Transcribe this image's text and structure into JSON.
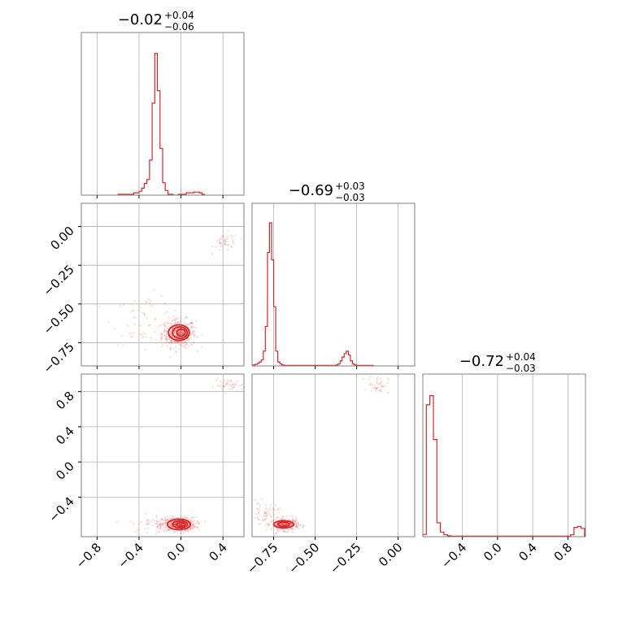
{
  "figure": {
    "type": "corner-plot"
  },
  "colors": {
    "accent": "#d62728",
    "grid": "#b0b0b0",
    "frame": "#808080"
  },
  "chart_data": [
    {
      "panel": "hist-0",
      "type": "bar",
      "title": {
        "value": "−0.02",
        "plus": "+0.04",
        "minus": "−0.06"
      },
      "xlim": [
        -0.95,
        0.6
      ],
      "xticks": [
        -0.8,
        -0.4,
        0.0,
        0.4
      ],
      "bins": {
        "start": -0.6,
        "width": 0.025,
        "counts": [
          1,
          1,
          1,
          1,
          1,
          1,
          3,
          3,
          5,
          9,
          15,
          20,
          45,
          118,
          182,
          134,
          60,
          16,
          6,
          1,
          1,
          0,
          0,
          1,
          1,
          1,
          3,
          3,
          3,
          4,
          4,
          3,
          1
        ]
      },
      "ymax": 190
    },
    {
      "panel": "scatter-1-0",
      "type": "scatter",
      "xlim": [
        -0.95,
        0.6
      ],
      "ylim": [
        -0.9,
        0.15
      ],
      "xticks": [
        -0.8,
        -0.4,
        0.0,
        0.4
      ],
      "yticks": [
        0.0,
        -0.25,
        -0.5,
        -0.75
      ],
      "ytick_labels": [
        "0.00",
        "−0.25",
        "−0.50",
        "−0.75"
      ],
      "clusters": [
        {
          "cx": -0.02,
          "cy": -0.69,
          "sx": 0.08,
          "sy": 0.045,
          "n": 420
        },
        {
          "cx": 0.43,
          "cy": -0.1,
          "sx": 0.06,
          "sy": 0.03,
          "n": 45
        },
        {
          "cx": -0.35,
          "cy": -0.6,
          "sx": 0.15,
          "sy": 0.08,
          "n": 60
        }
      ],
      "contours": [
        {
          "cx": -0.02,
          "cy": -0.685,
          "rx": 0.1,
          "ry": 0.05
        },
        {
          "cx": -0.01,
          "cy": -0.685,
          "rx": 0.07,
          "ry": 0.037
        },
        {
          "cx": 0.0,
          "cy": -0.685,
          "rx": 0.04,
          "ry": 0.022
        }
      ]
    },
    {
      "panel": "hist-1",
      "type": "bar",
      "title": {
        "value": "−0.69",
        "plus": "+0.03",
        "minus": "−0.03"
      },
      "xlim": [
        -0.88,
        0.1
      ],
      "xticks": [
        -0.75,
        -0.5,
        -0.25,
        0.0
      ],
      "bins": {
        "start": -0.875,
        "width": 0.0125,
        "counts": [
          2,
          3,
          5,
          8,
          12,
          30,
          80,
          230,
          290,
          215,
          120,
          30,
          8,
          4,
          2,
          1,
          1,
          1,
          1,
          1,
          1,
          1,
          1,
          1,
          1,
          1,
          1,
          1,
          1,
          1,
          1,
          1,
          1,
          1,
          1,
          1,
          1,
          1,
          1,
          1,
          2,
          4,
          10,
          18,
          25,
          30,
          22,
          10,
          4,
          2,
          1,
          1,
          1,
          1,
          1,
          1,
          1,
          1
        ]
      },
      "ymax": 300
    },
    {
      "panel": "scatter-2-0",
      "type": "scatter",
      "xlim": [
        -0.95,
        0.6
      ],
      "ylim": [
        -0.85,
        1.0
      ],
      "xticks": [
        -0.8,
        -0.4,
        0.0,
        0.4
      ],
      "yticks": [
        0.8,
        0.4,
        0.0,
        -0.4
      ],
      "ytick_labels": [
        "0.8",
        "0.4",
        "0.0",
        "−0.4"
      ],
      "clusters": [
        {
          "cx": -0.02,
          "cy": -0.71,
          "sx": 0.08,
          "sy": 0.04,
          "n": 420
        },
        {
          "cx": -0.25,
          "cy": -0.7,
          "sx": 0.12,
          "sy": 0.05,
          "n": 60
        },
        {
          "cx": 0.46,
          "cy": 0.87,
          "sx": 0.07,
          "sy": 0.035,
          "n": 45
        }
      ],
      "contours": [
        {
          "cx": -0.02,
          "cy": -0.71,
          "rx": 0.11,
          "ry": 0.06
        },
        {
          "cx": -0.01,
          "cy": -0.71,
          "rx": 0.07,
          "ry": 0.04
        },
        {
          "cx": 0.0,
          "cy": -0.71,
          "rx": 0.04,
          "ry": 0.022
        }
      ]
    },
    {
      "panel": "scatter-2-1",
      "type": "scatter",
      "xlim": [
        -0.88,
        0.1
      ],
      "ylim": [
        -0.85,
        1.0
      ],
      "xticks": [
        -0.75,
        -0.5,
        -0.25,
        0.0
      ],
      "xtick_labels": [
        "−0.75",
        "−0.50",
        "−0.25",
        "0.00"
      ],
      "clusters": [
        {
          "cx": -0.68,
          "cy": -0.71,
          "sx": 0.04,
          "sy": 0.035,
          "n": 300
        },
        {
          "cx": -0.8,
          "cy": -0.58,
          "sx": 0.04,
          "sy": 0.06,
          "n": 60
        },
        {
          "cx": -0.12,
          "cy": 0.88,
          "sx": 0.03,
          "sy": 0.05,
          "n": 45
        }
      ],
      "contours": [
        {
          "cx": -0.69,
          "cy": -0.71,
          "rx": 0.06,
          "ry": 0.04
        },
        {
          "cx": -0.69,
          "cy": -0.71,
          "rx": 0.035,
          "ry": 0.025
        }
      ]
    },
    {
      "panel": "hist-2",
      "type": "bar",
      "title": {
        "value": "−0.72",
        "plus": "+0.04",
        "minus": "−0.03"
      },
      "xlim": [
        -0.85,
        1.0
      ],
      "xticks": [
        -0.4,
        0.0,
        0.4,
        0.8
      ],
      "xtick_labels": [
        "−0.4",
        "0.0",
        "0.4",
        "0.8"
      ],
      "bins": {
        "start": -0.85,
        "width": 0.04,
        "counts": [
          5,
          285,
          305,
          210,
          30,
          10,
          4,
          2,
          1,
          1,
          1,
          1,
          1,
          1,
          1,
          1,
          1,
          1,
          1,
          1,
          1,
          1,
          1,
          1,
          1,
          1,
          1,
          1,
          1,
          1,
          1,
          1,
          1,
          1,
          1,
          1,
          1,
          1,
          1,
          1,
          1,
          1,
          4,
          20,
          22,
          18
        ]
      },
      "ymax": 320
    }
  ]
}
